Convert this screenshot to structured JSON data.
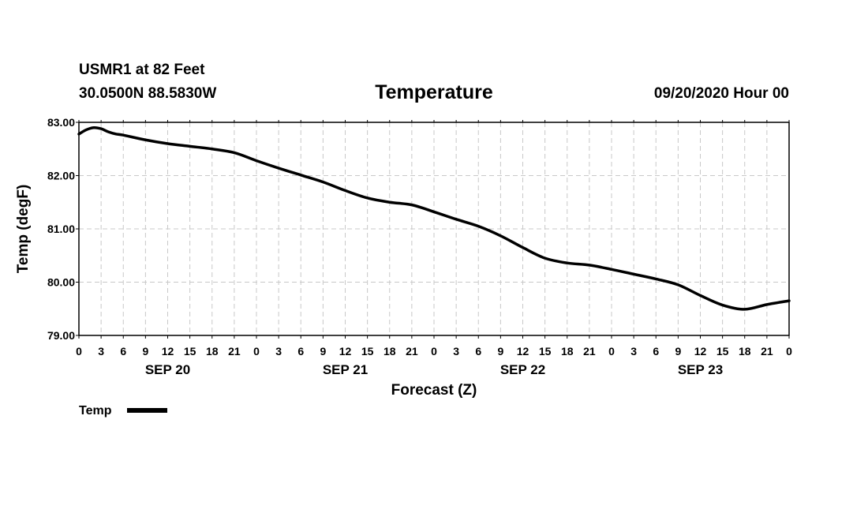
{
  "header": {
    "station": "USMR1 at 82 Feet",
    "location": "30.0500N 88.5830W",
    "title": "Temperature",
    "run": "09/20/2020 Hour 00"
  },
  "chart_data": {
    "type": "line",
    "title": "Temperature",
    "xlabel": "Forecast (Z)",
    "ylabel": "Temp (degF)",
    "ylim": [
      79.0,
      83.0
    ],
    "yticks": [
      "79.00",
      "80.00",
      "81.00",
      "82.00",
      "83.00"
    ],
    "xlim": [
      0,
      96
    ],
    "x_tick_hours": [
      0,
      3,
      6,
      9,
      12,
      15,
      18,
      21,
      24,
      27,
      30,
      33,
      36,
      39,
      42,
      45,
      48,
      51,
      54,
      57,
      60,
      63,
      66,
      69,
      72,
      75,
      78,
      81,
      84,
      87,
      90,
      93,
      96
    ],
    "x_tick_labels": [
      "0",
      "3",
      "6",
      "9",
      "12",
      "15",
      "18",
      "21",
      "0",
      "3",
      "6",
      "9",
      "12",
      "15",
      "18",
      "21",
      "0",
      "3",
      "6",
      "9",
      "12",
      "15",
      "18",
      "21",
      "0",
      "3",
      "6",
      "9",
      "12",
      "15",
      "18",
      "21",
      "0"
    ],
    "date_labels": [
      {
        "label": "SEP 20",
        "hour": 12
      },
      {
        "label": "SEP 21",
        "hour": 36
      },
      {
        "label": "SEP 22",
        "hour": 60
      },
      {
        "label": "SEP 23",
        "hour": 84
      }
    ],
    "grid": true,
    "series": [
      {
        "name": "Temp",
        "color": "#000000",
        "x": [
          0,
          1,
          2,
          3,
          4,
          5,
          6,
          9,
          12,
          15,
          18,
          21,
          24,
          27,
          30,
          33,
          36,
          39,
          42,
          45,
          48,
          51,
          54,
          57,
          60,
          63,
          66,
          69,
          72,
          75,
          78,
          81,
          84,
          87,
          90,
          93,
          96
        ],
        "y": [
          82.78,
          82.86,
          82.9,
          82.88,
          82.82,
          82.78,
          82.76,
          82.67,
          82.6,
          82.55,
          82.5,
          82.43,
          82.28,
          82.14,
          82.01,
          81.88,
          81.72,
          81.58,
          81.5,
          81.45,
          81.32,
          81.18,
          81.05,
          80.87,
          80.65,
          80.45,
          80.36,
          80.32,
          80.24,
          80.15,
          80.06,
          79.95,
          79.75,
          79.57,
          79.49,
          79.58,
          79.65
        ]
      }
    ],
    "legend": {
      "position": "bottom-left",
      "label": "Temp"
    }
  }
}
